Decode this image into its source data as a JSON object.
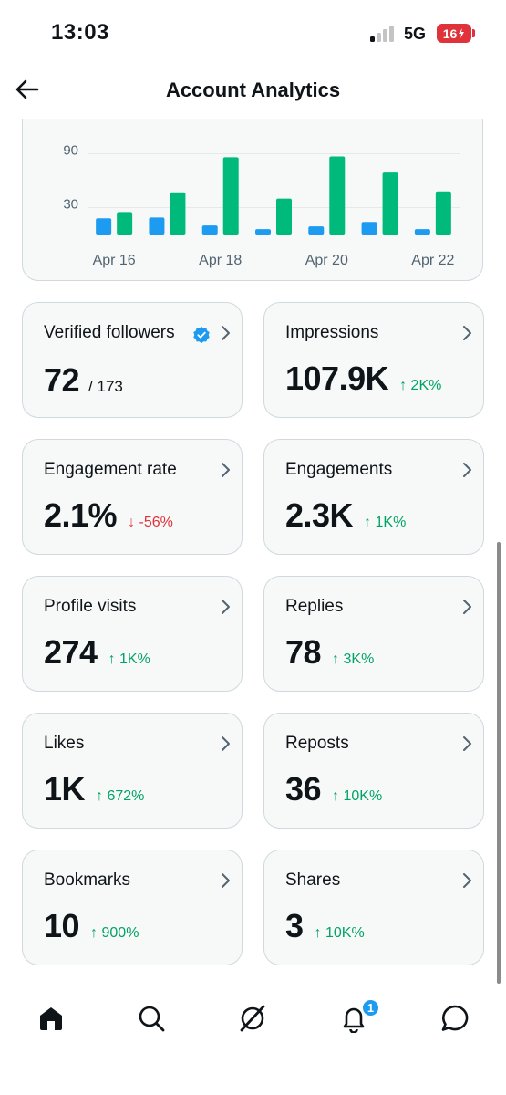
{
  "status_bar": {
    "time": "13:03",
    "network": "5G",
    "battery": "16"
  },
  "header": {
    "title": "Account Analytics"
  },
  "chart_data": {
    "type": "bar",
    "categories": [
      "Apr 16",
      "Apr 17",
      "Apr 18",
      "Apr 19",
      "Apr 20",
      "Apr 21",
      "Apr 22"
    ],
    "x_tick_labels": [
      "Apr 16",
      "Apr 18",
      "Apr 20",
      "Apr 22"
    ],
    "y_tick_labels": [
      "90",
      "30"
    ],
    "y_ticks": [
      90,
      30
    ],
    "ylim": [
      0,
      108
    ],
    "grid": true,
    "series": [
      {
        "color": "#1d9bf0",
        "values": [
          18,
          19,
          10,
          6,
          9,
          14,
          6
        ]
      },
      {
        "color": "#00ba7c",
        "values": [
          25,
          47,
          86,
          40,
          87,
          69,
          48
        ]
      }
    ]
  },
  "cards": [
    {
      "label": "Verified followers",
      "value": "72",
      "sub": "/ 173",
      "change": "",
      "direction": "",
      "verified": true
    },
    {
      "label": "Impressions",
      "value": "107.9K",
      "sub": "",
      "change": "↑ 2K%",
      "direction": "up"
    },
    {
      "label": "Engagement rate",
      "value": "2.1%",
      "sub": "",
      "change": "↓ -56%",
      "direction": "down"
    },
    {
      "label": "Engagements",
      "value": "2.3K",
      "sub": "",
      "change": "↑ 1K%",
      "direction": "up"
    },
    {
      "label": "Profile visits",
      "value": "274",
      "sub": "",
      "change": "↑ 1K%",
      "direction": "up"
    },
    {
      "label": "Replies",
      "value": "78",
      "sub": "",
      "change": "↑ 3K%",
      "direction": "up"
    },
    {
      "label": "Likes",
      "value": "1K",
      "sub": "",
      "change": "↑ 672%",
      "direction": "up"
    },
    {
      "label": "Reposts",
      "value": "36",
      "sub": "",
      "change": "↑ 10K%",
      "direction": "up"
    },
    {
      "label": "Bookmarks",
      "value": "10",
      "sub": "",
      "change": "↑ 900%",
      "direction": "up"
    },
    {
      "label": "Shares",
      "value": "3",
      "sub": "",
      "change": "↑ 10K%",
      "direction": "up"
    }
  ],
  "nav": {
    "items": [
      "home-icon",
      "search-icon",
      "grok-icon",
      "notifications-icon",
      "messages-icon"
    ],
    "notification_count": "1"
  },
  "colors": {
    "up": "#00a364",
    "down": "#e0323a",
    "accent": "#1d9bf0",
    "bar_green": "#00ba7c"
  }
}
